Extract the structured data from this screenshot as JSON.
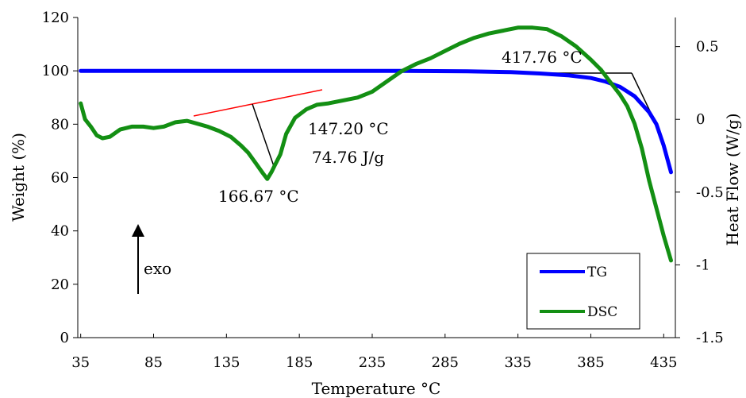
{
  "chart_data": {
    "type": "line",
    "title": "",
    "xlabel": "Temperature °C",
    "ylabel": "Weight (%)",
    "y2label": "Heat Flow (W/g)",
    "xlim": [
      33,
      443
    ],
    "ylim": [
      0,
      120
    ],
    "y2lim": [
      -1.5,
      0.7
    ],
    "x_ticks": [
      35,
      85,
      135,
      185,
      235,
      285,
      335,
      385,
      435
    ],
    "y_ticks": [
      0,
      20,
      40,
      60,
      80,
      100,
      120
    ],
    "y2_ticks": [
      -1.5,
      -1,
      -0.5,
      0,
      0.5
    ],
    "y2_tick_labels": [
      "-1.5",
      "-1",
      "-0.5",
      "0",
      "0.5"
    ],
    "grid": false,
    "legend_position": "bottom-right",
    "series": [
      {
        "name": "TG",
        "axis": "left",
        "color": "#0000ff",
        "x": [
          35,
          60,
          100,
          150,
          200,
          250,
          300,
          330,
          350,
          370,
          385,
          395,
          405,
          415,
          425,
          430,
          435,
          440
        ],
        "y": [
          100,
          100,
          100,
          100,
          100,
          100,
          99.8,
          99.5,
          99.0,
          98.3,
          97.3,
          96.0,
          94.0,
          90.5,
          84.5,
          80.0,
          72.0,
          62.0
        ]
      },
      {
        "name": "DSC",
        "axis": "right",
        "color": "#138f13",
        "x": [
          35,
          38,
          42,
          46,
          50,
          55,
          62,
          70,
          78,
          85,
          92,
          100,
          108,
          115,
          122,
          130,
          138,
          145,
          150,
          155,
          160,
          163,
          166,
          168,
          172,
          176,
          182,
          190,
          197,
          205,
          215,
          225,
          235,
          245,
          255,
          265,
          275,
          285,
          295,
          305,
          315,
          325,
          335,
          345,
          355,
          365,
          375,
          385,
          392,
          398,
          405,
          410,
          415,
          420,
          425,
          430,
          435,
          440
        ],
        "y": [
          0.11,
          0.0,
          -0.05,
          -0.11,
          -0.13,
          -0.12,
          -0.07,
          -0.05,
          -0.05,
          -0.06,
          -0.05,
          -0.02,
          -0.01,
          -0.03,
          -0.05,
          -0.08,
          -0.12,
          -0.18,
          -0.23,
          -0.3,
          -0.37,
          -0.41,
          -0.36,
          -0.32,
          -0.24,
          -0.1,
          0.01,
          0.07,
          0.1,
          0.11,
          0.13,
          0.15,
          0.19,
          0.26,
          0.33,
          0.38,
          0.42,
          0.47,
          0.52,
          0.56,
          0.59,
          0.61,
          0.63,
          0.63,
          0.62,
          0.57,
          0.5,
          0.41,
          0.34,
          0.26,
          0.17,
          0.09,
          -0.03,
          -0.2,
          -0.42,
          -0.61,
          -0.8,
          -0.97
        ]
      }
    ],
    "annotations": [
      {
        "text": "417.76 °C"
      },
      {
        "text": "147.20 °C"
      },
      {
        "text": "74.76 J/g"
      },
      {
        "text": "166.67 °C"
      },
      {
        "text": "exo"
      }
    ]
  }
}
